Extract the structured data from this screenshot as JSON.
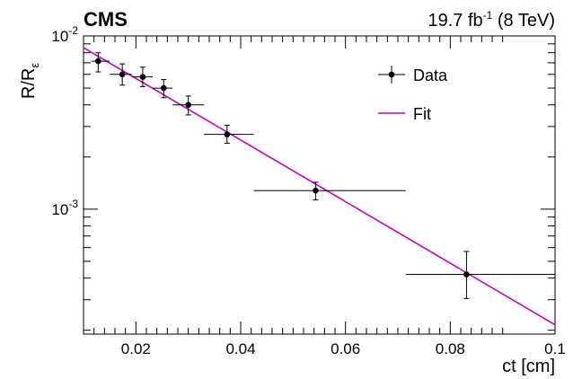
{
  "header": {
    "experiment": "CMS",
    "lumi_value": "19.7 fb",
    "lumi_exponent": "-1",
    "energy": " (8 TeV)"
  },
  "chart_data": {
    "type": "scatter",
    "title": "",
    "xlabel": "ct [cm]",
    "ylabel_main": "R/R",
    "ylabel_sub": "ε",
    "xlim": [
      0.01,
      0.1
    ],
    "ylim": [
      0.00019,
      0.01
    ],
    "yscale": "log",
    "x_major_ticks": [
      0.02,
      0.04,
      0.06,
      0.08,
      0.1
    ],
    "x_tick_labels": [
      "0.02",
      "0.04",
      "0.06",
      "0.08",
      "0.1"
    ],
    "y_tick_labels": [
      {
        "value": 0.01,
        "base": "10",
        "exp": "-2"
      },
      {
        "value": 0.001,
        "base": "10",
        "exp": "-3"
      }
    ],
    "grid": false,
    "legend_position": "top-right",
    "series": [
      {
        "name": "Data",
        "kind": "points_with_errors",
        "color": "#000000",
        "points": [
          {
            "x": 0.0128,
            "y": 0.00715,
            "xlo": 0.0115,
            "xhi": 0.015,
            "ylo": 0.0062,
            "yhi": 0.008
          },
          {
            "x": 0.0174,
            "y": 0.006,
            "xlo": 0.015,
            "xhi": 0.0192,
            "ylo": 0.0052,
            "yhi": 0.0069
          },
          {
            "x": 0.0213,
            "y": 0.0058,
            "xlo": 0.0192,
            "xhi": 0.0232,
            "ylo": 0.0051,
            "yhi": 0.0066
          },
          {
            "x": 0.0253,
            "y": 0.005,
            "xlo": 0.0232,
            "xhi": 0.027,
            "ylo": 0.0044,
            "yhi": 0.0056
          },
          {
            "x": 0.03,
            "y": 0.004,
            "xlo": 0.027,
            "xhi": 0.033,
            "ylo": 0.0035,
            "yhi": 0.0045
          },
          {
            "x": 0.0374,
            "y": 0.0027,
            "xlo": 0.033,
            "xhi": 0.0425,
            "ylo": 0.0024,
            "yhi": 0.00305
          },
          {
            "x": 0.0543,
            "y": 0.00128,
            "xlo": 0.0425,
            "xhi": 0.0715,
            "ylo": 0.00113,
            "yhi": 0.00143
          },
          {
            "x": 0.0831,
            "y": 0.00042,
            "xlo": 0.0715,
            "xhi": 0.1,
            "ylo": 0.000305,
            "yhi": 0.00057
          }
        ]
      },
      {
        "name": "Fit",
        "kind": "line",
        "color": "#c800c8",
        "points": [
          {
            "x": 0.01,
            "y": 0.00855
          },
          {
            "x": 0.1,
            "y": 0.000215
          }
        ]
      }
    ]
  }
}
